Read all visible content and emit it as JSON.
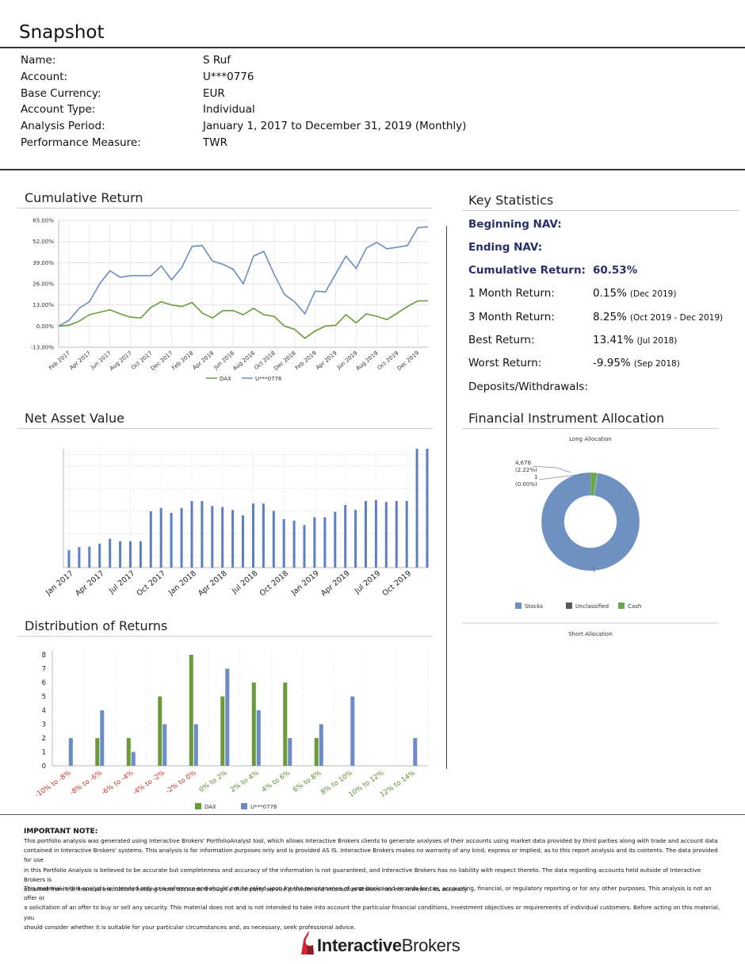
{
  "page": {
    "title": "Snapshot"
  },
  "account_info": [
    {
      "label": "Name:",
      "value": "S          Ruf"
    },
    {
      "label": "Account:",
      "value": "U***0776"
    },
    {
      "label": "Base Currency:",
      "value": "EUR"
    },
    {
      "label": "Account Type:",
      "value": "Individual"
    },
    {
      "label": "Analysis Period:",
      "value": "January 1, 2017 to December 31, 2019 (Monthly)"
    },
    {
      "label": "Performance Measure:",
      "value": "TWR"
    }
  ],
  "sections": {
    "cumulative_return": "Cumulative Return",
    "key_statistics": "Key Statistics",
    "net_asset_value": "Net Asset Value",
    "financial_instrument_allocation": "Financial Instrument Allocation",
    "distribution_of_returns": "Distribution of Returns"
  },
  "key_statistics": {
    "beginning_nav_label": "Beginning NAV:",
    "ending_nav_label": "Ending NAV:",
    "cumulative_return_label": "Cumulative Return:",
    "cumulative_return_value": "60.53%",
    "one_month_label": "1 Month Return:",
    "one_month_value": "0.15%",
    "one_month_note": "(Dec 2019)",
    "three_month_label": "3 Month Return:",
    "three_month_value": "8.25%",
    "three_month_note": "(Oct 2019 - Dec 2019)",
    "best_label": "Best Return:",
    "best_value": "13.41%",
    "best_note": "(Jul 2018)",
    "worst_label": "Worst Return:",
    "worst_value": "-9.95%",
    "worst_note": "(Sep 2018)",
    "deposits_label": "Deposits/Withdrawals:"
  },
  "chart_data": [
    {
      "id": "cumulative",
      "type": "line",
      "ylim": [
        -13,
        65
      ],
      "y_ticks": [
        "65.00%",
        "52.00%",
        "39.00%",
        "26.00%",
        "13.00%",
        "0.00%",
        "-13.00%"
      ],
      "y_tick_values": [
        65,
        52,
        39,
        26,
        13,
        0,
        -13
      ],
      "x_tick_labels": [
        "Feb 2017",
        "Apr 2017",
        "Jun 2017",
        "Aug 2017",
        "Oct 2017",
        "Dec 2017",
        "Feb 2018",
        "Apr 2018",
        "Jun 2018",
        "Aug 2018",
        "Oct 2018",
        "Dec 2018",
        "Feb 2019",
        "Apr 2019",
        "Jun 2019",
        "Aug 2019",
        "Oct 2019",
        "Dec 2019"
      ],
      "series": [
        {
          "name": "DAX",
          "color": "#6a9a3a",
          "values": [
            0,
            0.5,
            3,
            7,
            8.5,
            10,
            7.5,
            5.5,
            5,
            11.5,
            15,
            13,
            12,
            14.5,
            8,
            5,
            9.5,
            9.5,
            7,
            11,
            7,
            6,
            0,
            -2,
            -7.5,
            -3,
            0,
            0.5,
            7,
            2,
            7.5,
            6,
            4,
            8,
            12,
            15.5,
            15.5
          ]
        },
        {
          "name": "U***0776",
          "color": "#6b8cc4",
          "values": [
            0,
            3.5,
            11,
            15,
            26,
            34,
            30,
            31,
            31,
            31,
            37,
            28.5,
            36,
            49,
            49.5,
            40,
            38,
            35,
            26,
            43,
            46,
            32,
            19.5,
            15,
            7.5,
            21.5,
            21,
            32,
            43,
            35.5,
            48,
            51.5,
            47.5,
            48.5,
            49.5,
            60.5,
            61
          ]
        }
      ]
    },
    {
      "id": "nav",
      "type": "bar",
      "x_tick_labels": [
        "Jan 2017",
        "Apr 2017",
        "Jul 2017",
        "Oct 2017",
        "Jan 2018",
        "Apr 2018",
        "Jul 2018",
        "Oct 2018",
        "Jan 2019",
        "Apr 2019",
        "Jul 2019",
        "Oct 2019"
      ],
      "color": "#5b7fc0",
      "values": [
        3.6,
        4.2,
        4.3,
        4.9,
        5.9,
        5.4,
        5.4,
        5.4,
        11.5,
        12.2,
        11.2,
        12.2,
        13.6,
        13.6,
        12.6,
        12.4,
        11.8,
        10.7,
        13.1,
        13.1,
        11.6,
        9.9,
        9.6,
        8.7,
        10.3,
        10.3,
        11.4,
        12.8,
        11.8,
        13.6,
        13.8,
        13.4,
        13.6,
        13.6,
        24.3,
        24.3
      ]
    },
    {
      "id": "allocation",
      "type": "pie",
      "title": "Long Allocation",
      "labels": [
        {
          "value": "4,676",
          "pct": "(2.22%)"
        },
        {
          "value": "1",
          "pct": "(0.00%)"
        }
      ],
      "slices": [
        {
          "name": "Stocks",
          "color": "#6f91c2",
          "pct": 97.78
        },
        {
          "name": "Unclassified",
          "color": "#5a5a5a",
          "pct": 0.0
        },
        {
          "name": "Cash",
          "color": "#6aa84f",
          "pct": 2.22
        }
      ],
      "short_title": "Short Allocation"
    },
    {
      "id": "distribution",
      "type": "bar",
      "ylim": [
        0,
        8
      ],
      "y_ticks": [
        0,
        1,
        2,
        3,
        4,
        5,
        6,
        7,
        8
      ],
      "categories": [
        "-10% to -8%",
        "-8% to -6%",
        "-6% to -4%",
        "-4% to -2%",
        "-2% to 0%",
        "0% to 2%",
        "2% to 4%",
        "4% to 6%",
        "6% to 8%",
        "8% to 10%",
        "10% to 12%",
        "12% to 14%"
      ],
      "label_colors": [
        "#c0392b",
        "#c0392b",
        "#c0392b",
        "#c0392b",
        "#c0392b",
        "#5a8a2a",
        "#5a8a2a",
        "#5a8a2a",
        "#5a8a2a",
        "#5a8a2a",
        "#5a8a2a",
        "#5a8a2a"
      ],
      "series": [
        {
          "name": "DAX",
          "color": "#6a9a3a",
          "values": [
            0,
            2,
            2,
            5,
            8,
            5,
            6,
            6,
            2,
            0,
            0,
            0
          ]
        },
        {
          "name": "U***0776",
          "color": "#6b8cc4",
          "values": [
            2,
            4,
            1,
            3,
            3,
            7,
            4,
            2,
            3,
            5,
            0,
            2
          ]
        }
      ]
    }
  ],
  "important_note": {
    "title": "IMPORTANT NOTE:",
    "paragraph1": [
      "This portfolio analysis was generated using Interactive Brokers' PortfolioAnalyst tool, which allows Interactive Brokers clients to generate analyses of their accounts using market data provided by third parties along with trade and account data",
      "contained in Interactive Brokers' systems. This analysis is for information purposes only and is provided AS IS. Interactive Brokers makes no warranty of any kind, express or implied, as to this report analysis and its contents. The data provided for use",
      "in this Portfolio Analysis is believed to be accurate but completeness and accuracy of the information is not guaranteed, and Interactive Brokers has no liability with respect thereto. The data regarding accounts held outside of Interactive Brokers is",
      "obtained from the financial institutions holding those accounts through a third-party service provider and Interactive Brokers has not reviewed its accuracy."
    ],
    "paragraph2": [
      "This material in this analysis is intended only as a reference and should not be relied upon for the maintenance of your books and records for tax, accounting, financial, or regulatory reporting or for any other purposes. This analysis is not an offer or",
      "a solicitation of an offer to buy or sell any security. This material does not and is not intended to take into account the particular financial conditions, investment objectives or requirements of individual customers. Before acting on this material, you",
      "should consider whether it is suitable for your particular circumstances and, as necessary, seek professional advice."
    ]
  },
  "logo": {
    "text_bold": "Interactive",
    "text_light": "Brokers",
    "accent": "#d22630"
  }
}
